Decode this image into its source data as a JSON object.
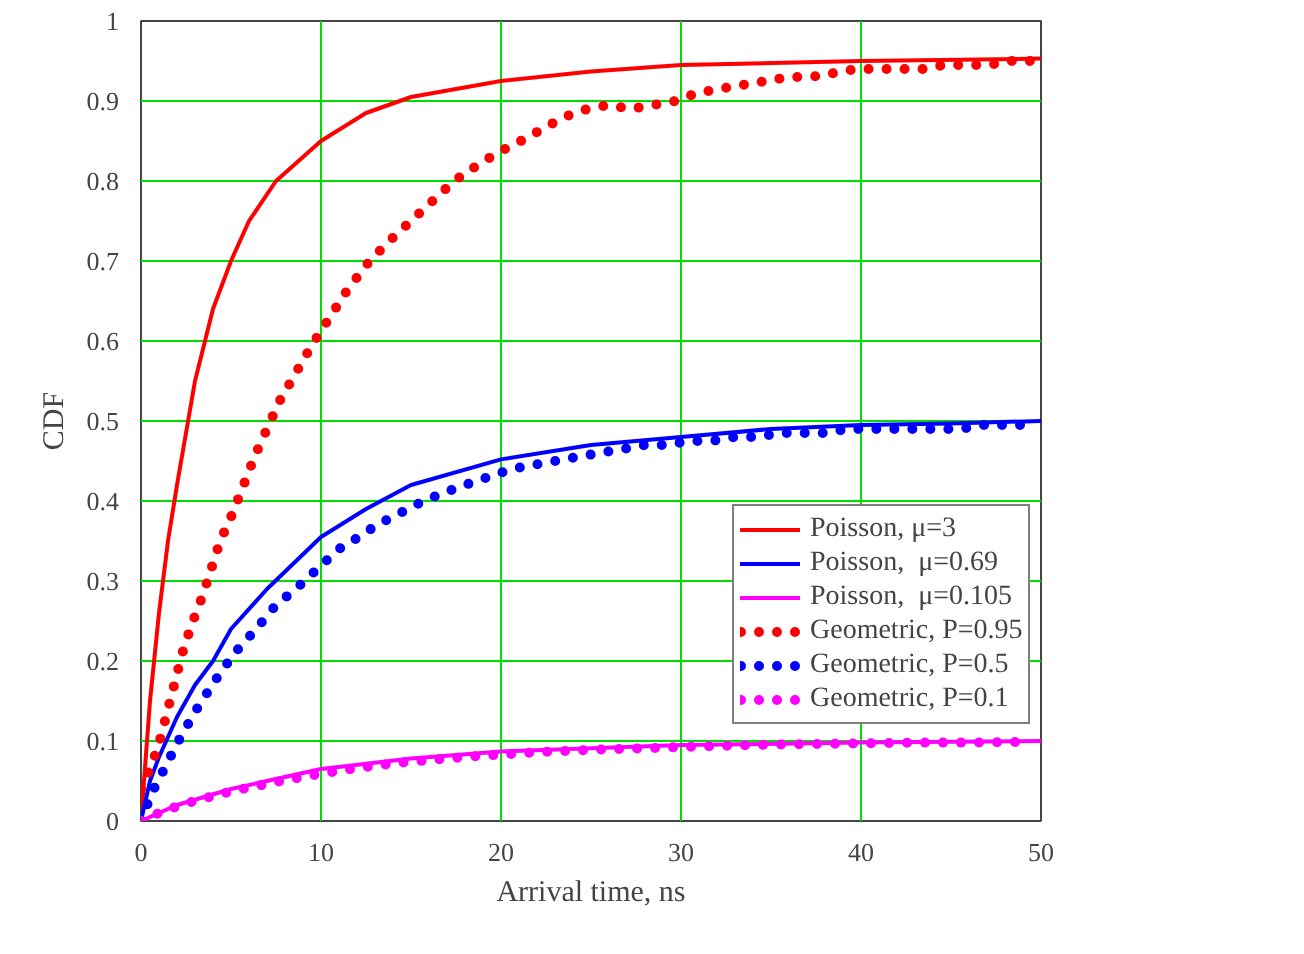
{
  "chart_data": {
    "type": "line",
    "xlabel": "Arrival time, ns",
    "ylabel": "CDF",
    "xlim": [
      0,
      50
    ],
    "ylim": [
      0,
      1
    ],
    "xticks": [
      0,
      10,
      20,
      30,
      40,
      50
    ],
    "yticks": [
      0,
      0.1,
      0.2,
      0.3,
      0.4,
      0.5,
      0.6,
      0.7,
      0.8,
      0.9,
      1
    ],
    "grid": true,
    "legend": "bottom right",
    "series": [
      {
        "name": "Poisson, μ=3",
        "color": "#ff0000",
        "line_style": "solid",
        "x": [
          0,
          0.5,
          1,
          1.5,
          2,
          3,
          4,
          5,
          6,
          7.5,
          10,
          12.5,
          15,
          20,
          25,
          30,
          40,
          50
        ],
        "values": [
          0,
          0.15,
          0.26,
          0.35,
          0.42,
          0.55,
          0.64,
          0.7,
          0.75,
          0.8,
          0.85,
          0.885,
          0.905,
          0.925,
          0.937,
          0.945,
          0.95,
          0.953
        ]
      },
      {
        "name": "Poisson,  μ=0.69",
        "color": "#0000ff",
        "line_style": "solid",
        "x": [
          0,
          0.5,
          1,
          2,
          3,
          4,
          5,
          7,
          10,
          12.5,
          15,
          20,
          25,
          30,
          35,
          40,
          45,
          50
        ],
        "values": [
          0,
          0.05,
          0.08,
          0.13,
          0.17,
          0.2,
          0.24,
          0.29,
          0.355,
          0.39,
          0.42,
          0.452,
          0.47,
          0.48,
          0.49,
          0.495,
          0.497,
          0.5
        ]
      },
      {
        "name": "Poisson,  μ=0.105",
        "color": "#ff00ff",
        "line_style": "solid",
        "x": [
          0,
          2,
          5,
          10,
          15,
          20,
          30,
          40,
          50
        ],
        "values": [
          0,
          0.02,
          0.04,
          0.065,
          0.078,
          0.087,
          0.095,
          0.098,
          0.1
        ]
      },
      {
        "name": "Geometric, P=0.95",
        "color": "#ff0000",
        "line_style": "dotted",
        "x": [
          0,
          0.6,
          1.1,
          1.5,
          1.9,
          2.3,
          2.8,
          3.4,
          3.9,
          4.4,
          5.1,
          5.7,
          6.3,
          7,
          7.7,
          8.6,
          9.5,
          10.5,
          11.5,
          12.7,
          13.8,
          15,
          16.2,
          17.4,
          18.7,
          19.8,
          21.1,
          22.3,
          23.5,
          24.8,
          26,
          27.2,
          28.5,
          29.7,
          30.9,
          32.1,
          33.4,
          34.7,
          36,
          37.2,
          38.5,
          39.7,
          40.9,
          42.1,
          43.4,
          44.6,
          45.9,
          47.1,
          48.3,
          49.6
        ],
        "values": [
          0.04,
          0.07,
          0.105,
          0.14,
          0.175,
          0.21,
          0.245,
          0.28,
          0.315,
          0.35,
          0.385,
          0.42,
          0.455,
          0.49,
          0.525,
          0.56,
          0.595,
          0.63,
          0.665,
          0.7,
          0.725,
          0.75,
          0.775,
          0.8,
          0.82,
          0.835,
          0.85,
          0.865,
          0.88,
          0.89,
          0.895,
          0.89,
          0.895,
          0.9,
          0.91,
          0.915,
          0.92,
          0.925,
          0.93,
          0.93,
          0.935,
          0.94,
          0.94,
          0.94,
          0.94,
          0.945,
          0.945,
          0.945,
          0.95,
          0.95
        ]
      },
      {
        "name": "Geometric, P=0.5",
        "color": "#0000ff",
        "line_style": "dotted",
        "x": [
          0,
          0.6,
          1.4,
          2.2,
          3.1,
          4.1,
          5.2,
          6.4,
          7.5,
          8.6,
          9.8,
          11,
          12.1,
          13.1,
          14.4,
          15.7,
          16.8,
          18,
          19.3,
          20.6,
          21.8,
          23,
          24.2,
          25.5,
          26.8,
          28,
          29.2,
          30.5,
          31.7,
          33,
          34.3,
          35.5,
          36.8,
          38,
          39.2,
          40.5,
          41.7,
          43,
          44.3,
          45.5,
          46.8,
          48.1,
          49.3
        ],
        "values": [
          0,
          0.035,
          0.07,
          0.105,
          0.14,
          0.175,
          0.21,
          0.24,
          0.27,
          0.29,
          0.315,
          0.34,
          0.355,
          0.37,
          0.385,
          0.4,
          0.41,
          0.42,
          0.43,
          0.44,
          0.445,
          0.45,
          0.455,
          0.46,
          0.465,
          0.47,
          0.47,
          0.475,
          0.475,
          0.48,
          0.48,
          0.485,
          0.485,
          0.485,
          0.49,
          0.49,
          0.49,
          0.49,
          0.49,
          0.49,
          0.495,
          0.495,
          0.495
        ]
      },
      {
        "name": "Geometric, P=0.1",
        "color": "#ff00ff",
        "line_style": "dotted",
        "x": [
          0,
          1.2,
          2.5,
          3.8,
          5,
          6.5,
          8,
          10,
          12,
          14,
          16,
          18,
          20,
          22,
          25,
          28,
          31,
          34,
          37,
          40,
          43,
          46,
          49.5
        ],
        "values": [
          0,
          0.012,
          0.022,
          0.03,
          0.037,
          0.044,
          0.051,
          0.059,
          0.066,
          0.072,
          0.076,
          0.08,
          0.083,
          0.086,
          0.089,
          0.091,
          0.093,
          0.095,
          0.096,
          0.097,
          0.098,
          0.098,
          0.099
        ]
      }
    ]
  }
}
